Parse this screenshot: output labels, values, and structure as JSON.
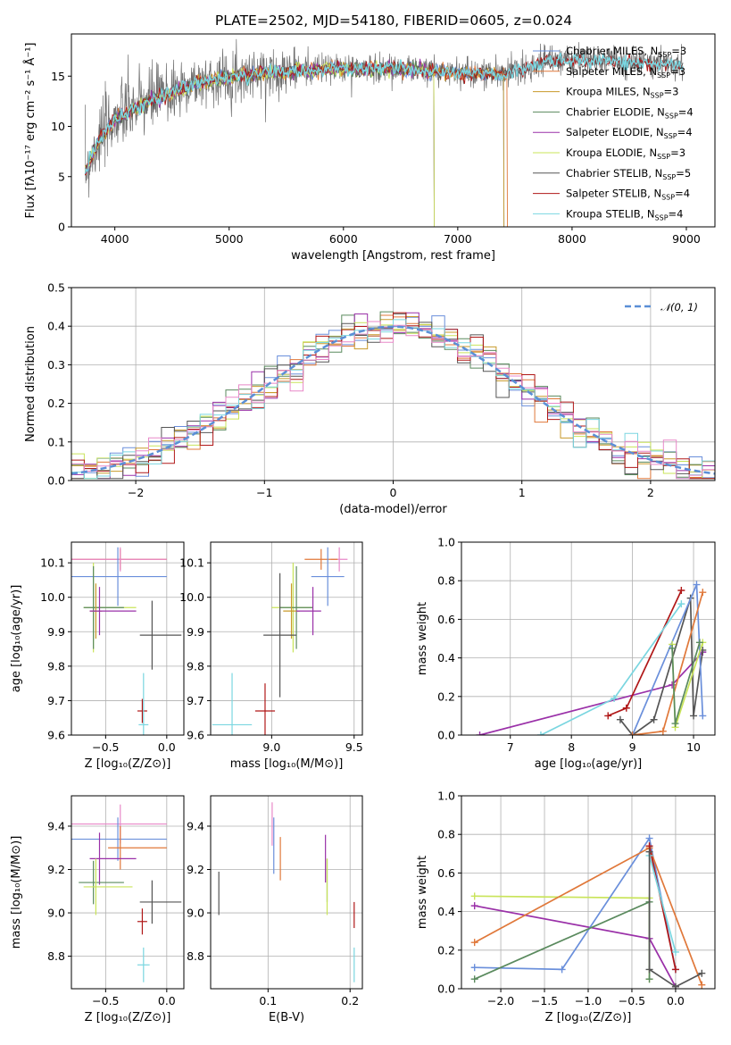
{
  "figure_title": "PLATE=2502, MJD=54180, FIBERID=0605, z=0.024",
  "colors": {
    "chabrier_miles": "#6a8fdb",
    "salpeter_miles": "#e0783a",
    "kroupa_miles": "#c89a2a",
    "chabrier_elodie": "#5a8a5e",
    "salpeter_elodie": "#9a30a8",
    "kroupa_elodie": "#c9e45a",
    "chabrier_stelib": "#555555",
    "salpeter_stelib": "#b01818",
    "kroupa_stelib": "#7ad6e0",
    "pink": "#e888c8",
    "data": "#6e6e6e",
    "normal": "#5b8fd6"
  },
  "chart_data": [
    {
      "id": "spectrum",
      "type": "line",
      "xlabel": "wavelength [Angstrom, rest frame]",
      "ylabel": "Flux [fλ10⁻¹⁷ erg cm⁻² s⁻¹ Å⁻¹]",
      "xlim": [
        3620,
        9250
      ],
      "ylim": [
        0,
        19.2
      ],
      "xticks": [
        "4000",
        "5000",
        "6000",
        "7000",
        "8000",
        "9000"
      ],
      "yticks": [
        "0",
        "5",
        "10",
        "15"
      ],
      "grid": false,
      "legend_position": "top-right",
      "continuum": [
        [
          3740,
          5.5
        ],
        [
          3850,
          8.5
        ],
        [
          4000,
          10.8
        ],
        [
          4300,
          12.6
        ],
        [
          4700,
          14.3
        ],
        [
          5000,
          15.0
        ],
        [
          5300,
          15.4
        ],
        [
          5700,
          15.7
        ],
        [
          6000,
          15.8
        ],
        [
          6500,
          15.8
        ],
        [
          7000,
          15.4
        ],
        [
          7400,
          15.2
        ],
        [
          7800,
          16.6
        ],
        [
          8300,
          16.6
        ],
        [
          8700,
          16.3
        ],
        [
          9000,
          16.1
        ]
      ],
      "data_range": [
        3740,
        8970
      ],
      "series": [
        {
          "name": "Chabrier MILES, N_SSP=3",
          "color_key": "chabrier_miles",
          "range": [
            3740,
            7400
          ]
        },
        {
          "name": "Salpeter MILES, N_SSP=3",
          "color_key": "salpeter_miles",
          "range": [
            3740,
            7430
          ]
        },
        {
          "name": "Kroupa MILES, N_SSP=3",
          "color_key": "kroupa_miles",
          "range": [
            3740,
            7400
          ]
        },
        {
          "name": "Chabrier ELODIE, N_SSP=4",
          "color_key": "chabrier_elodie",
          "range": [
            3740,
            6790
          ]
        },
        {
          "name": "Salpeter ELODIE, N_SSP=4",
          "color_key": "salpeter_elodie",
          "range": [
            3740,
            6790
          ]
        },
        {
          "name": "Kroupa ELODIE, N_SSP=3",
          "color_key": "kroupa_elodie",
          "range": [
            3740,
            6790
          ]
        },
        {
          "name": "Chabrier STELIB, N_SSP=5",
          "color_key": "chabrier_stelib",
          "range": [
            3740,
            8970
          ]
        },
        {
          "name": "Salpeter STELIB, N_SSP=4",
          "color_key": "salpeter_stelib",
          "range": [
            3740,
            8970
          ]
        },
        {
          "name": "Kroupa STELIB, N_SSP=4",
          "color_key": "kroupa_stelib",
          "range": [
            3740,
            8970
          ]
        }
      ]
    },
    {
      "id": "residuals",
      "type": "bar",
      "xlabel": "(data-model)/error",
      "ylabel": "Normed distribution",
      "xlim": [
        -2.5,
        2.5
      ],
      "ylim": [
        0,
        0.5
      ],
      "xticks": [
        "−2",
        "−1",
        "0",
        "1",
        "2"
      ],
      "yticks": [
        "0.0",
        "0.1",
        "0.2",
        "0.3",
        "0.4",
        "0.5"
      ],
      "grid": true,
      "legend": "𝒩(0, 1)",
      "legend_position": "top-right",
      "bin_width": 0.1,
      "normal": {
        "mean": 0,
        "sd": 1
      },
      "series_colors": [
        "chabrier_miles",
        "salpeter_miles",
        "kroupa_miles",
        "chabrier_elodie",
        "salpeter_elodie",
        "kroupa_elodie",
        "chabrier_stelib",
        "salpeter_stelib",
        "kroupa_stelib",
        "pink"
      ]
    },
    {
      "id": "age_vs_z",
      "type": "scatter",
      "xlabel": "Z [log₁₀(Z/Z⊙)]",
      "ylabel": "age  [log₁₀(age/yr)]",
      "xlim": [
        -0.78,
        0.14
      ],
      "ylim": [
        9.6,
        10.16
      ],
      "xticks": [
        -0.5,
        0.0
      ],
      "yticks": [
        9.6,
        9.7,
        9.8,
        9.9,
        10.0,
        10.1
      ],
      "grid": true,
      "points": [
        {
          "c": "salpeter_miles",
          "x": -0.38,
          "y": 10.11,
          "xerr": [
            0.42,
            0.38
          ],
          "yerr": 0.03
        },
        {
          "c": "pink",
          "x": -0.38,
          "y": 10.11,
          "xerr": [
            0.42,
            0.38
          ],
          "yerr": 0.035
        },
        {
          "c": "chabrier_miles",
          "x": -0.4,
          "y": 10.06,
          "xerr": [
            0.38,
            0.4
          ],
          "yerr": 0.085
        },
        {
          "c": "kroupa_elodie",
          "x": -0.6,
          "y": 9.97,
          "xerr": [
            0.08,
            0.35
          ],
          "yerr": 0.13
        },
        {
          "c": "chabrier_elodie",
          "x": -0.6,
          "y": 9.97,
          "xerr": [
            0.08,
            0.25
          ],
          "yerr": 0.12
        },
        {
          "c": "kroupa_miles",
          "x": -0.58,
          "y": 9.96,
          "xerr": [
            0.05,
            0.05
          ],
          "yerr": 0.08
        },
        {
          "c": "salpeter_elodie",
          "x": -0.55,
          "y": 9.96,
          "xerr": [
            0.08,
            0.3
          ],
          "yerr": 0.07
        },
        {
          "c": "chabrier_stelib",
          "x": -0.12,
          "y": 9.89,
          "xerr": [
            0.1,
            0.24
          ],
          "yerr": 0.1
        },
        {
          "c": "salpeter_stelib",
          "x": -0.2,
          "y": 9.67,
          "xerr": [
            0.04,
            0.04
          ],
          "yerr": 0.035
        },
        {
          "c": "kroupa_stelib",
          "x": -0.19,
          "y": 9.63,
          "xerr": [
            0.04,
            0.04
          ],
          "yerr": 0.15
        }
      ]
    },
    {
      "id": "age_vs_mass",
      "type": "scatter",
      "xlabel": "mass [log₁₀(M/M⊙)]",
      "ylabel": "",
      "xlim": [
        8.63,
        9.55
      ],
      "ylim": [
        9.6,
        10.16
      ],
      "xticks": [
        9.0,
        9.5
      ],
      "yticks": [
        9.6,
        9.7,
        9.8,
        9.9,
        10.0,
        10.1
      ],
      "grid": true,
      "points": [
        {
          "c": "pink",
          "x": 9.41,
          "y": 10.11,
          "xerr": [
            0.05,
            0.05
          ],
          "yerr": 0.035
        },
        {
          "c": "salpeter_miles",
          "x": 9.3,
          "y": 10.11,
          "xerr": [
            0.1,
            0.1
          ],
          "yerr": 0.03
        },
        {
          "c": "chabrier_miles",
          "x": 9.34,
          "y": 10.06,
          "xerr": [
            0.1,
            0.1
          ],
          "yerr": 0.085
        },
        {
          "c": "kroupa_elodie",
          "x": 9.13,
          "y": 9.97,
          "xerr": [
            0.13,
            0.12
          ],
          "yerr": 0.13
        },
        {
          "c": "chabrier_elodie",
          "x": 9.15,
          "y": 9.97,
          "xerr": [
            0.1,
            0.1
          ],
          "yerr": 0.12
        },
        {
          "c": "kroupa_miles",
          "x": 9.12,
          "y": 9.96,
          "xerr": [
            0.05,
            0.05
          ],
          "yerr": 0.08
        },
        {
          "c": "salpeter_elodie",
          "x": 9.25,
          "y": 9.96,
          "xerr": [
            0.1,
            0.05
          ],
          "yerr": 0.07
        },
        {
          "c": "chabrier_stelib",
          "x": 9.05,
          "y": 9.89,
          "xerr": [
            0.1,
            0.1
          ],
          "yerr": 0.18
        },
        {
          "c": "salpeter_stelib",
          "x": 8.96,
          "y": 9.67,
          "xerr": [
            0.06,
            0.06
          ],
          "yerr": 0.08
        },
        {
          "c": "kroupa_stelib",
          "x": 8.76,
          "y": 9.63,
          "xerr": [
            0.12,
            0.12
          ],
          "yerr": 0.15
        }
      ]
    },
    {
      "id": "mass_weight_vs_age",
      "type": "line",
      "xlabel": "age  [log₁₀(age/yr)]",
      "ylabel": "mass weight",
      "xlim": [
        6.2,
        10.35
      ],
      "ylim": [
        0,
        1.0
      ],
      "xticks": [
        7,
        8,
        9,
        10
      ],
      "yticks": [
        "0.0",
        "0.2",
        "0.4",
        "0.6",
        "0.8",
        "1.0"
      ],
      "grid": true,
      "series": [
        {
          "c": "salpeter_elodie",
          "pts": [
            [
              6.5,
              0.0
            ],
            [
              9.65,
              0.26
            ],
            [
              10.15,
              0.43
            ]
          ]
        },
        {
          "c": "salpeter_stelib",
          "pts": [
            [
              8.6,
              0.1
            ],
            [
              8.9,
              0.14
            ],
            [
              9.8,
              0.75
            ]
          ]
        },
        {
          "c": "kroupa_stelib",
          "pts": [
            [
              7.5,
              0.0
            ],
            [
              8.7,
              0.19
            ],
            [
              9.8,
              0.68
            ]
          ]
        },
        {
          "c": "chabrier_stelib",
          "pts": [
            [
              8.8,
              0.08
            ],
            [
              9.0,
              0.0
            ],
            [
              9.35,
              0.08
            ],
            [
              9.95,
              0.71
            ],
            [
              10.0,
              0.1
            ],
            [
              10.15,
              0.44
            ]
          ]
        },
        {
          "c": "chabrier_miles",
          "pts": [
            [
              9.0,
              0.0
            ],
            [
              10.05,
              0.78
            ],
            [
              10.15,
              0.1
            ]
          ]
        },
        {
          "c": "salpeter_miles",
          "pts": [
            [
              9.0,
              0.0
            ],
            [
              9.5,
              0.02
            ],
            [
              10.15,
              0.74
            ]
          ]
        },
        {
          "c": "kroupa_elodie",
          "pts": [
            [
              9.65,
              0.47
            ],
            [
              9.7,
              0.04
            ],
            [
              10.15,
              0.48
            ]
          ]
        },
        {
          "c": "chabrier_elodie",
          "pts": [
            [
              9.65,
              0.45
            ],
            [
              9.7,
              0.06
            ],
            [
              10.1,
              0.48
            ]
          ]
        }
      ]
    },
    {
      "id": "mass_vs_z",
      "type": "scatter",
      "xlabel": "Z [log₁₀(Z/Z⊙)]",
      "ylabel": "mass [log₁₀(M/M⊙)]",
      "xlim": [
        -0.78,
        0.14
      ],
      "ylim": [
        8.65,
        9.54
      ],
      "xticks": [
        -0.5,
        0.0
      ],
      "yticks": [
        8.8,
        9.0,
        9.2,
        9.4
      ],
      "grid": true,
      "points": [
        {
          "c": "pink",
          "x": -0.38,
          "y": 9.41,
          "xerr": [
            0.42,
            0.38
          ],
          "yerr": 0.09
        },
        {
          "c": "chabrier_miles",
          "x": -0.4,
          "y": 9.34,
          "xerr": [
            0.38,
            0.4
          ],
          "yerr": 0.1
        },
        {
          "c": "salpeter_miles",
          "x": -0.38,
          "y": 9.3,
          "xerr": [
            0.1,
            0.38
          ],
          "yerr": 0.1
        },
        {
          "c": "salpeter_elodie",
          "x": -0.55,
          "y": 9.25,
          "xerr": [
            0.08,
            0.3
          ],
          "yerr": 0.12
        },
        {
          "c": "chabrier_elodie",
          "x": -0.6,
          "y": 9.14,
          "xerr": [
            0.12,
            0.25
          ],
          "yerr": 0.1
        },
        {
          "c": "kroupa_elodie",
          "x": -0.58,
          "y": 9.12,
          "xerr": [
            0.1,
            0.3
          ],
          "yerr": 0.13
        },
        {
          "c": "chabrier_stelib",
          "x": -0.12,
          "y": 9.05,
          "xerr": [
            0.1,
            0.24
          ],
          "yerr": 0.1
        },
        {
          "c": "salpeter_stelib",
          "x": -0.2,
          "y": 8.96,
          "xerr": [
            0.04,
            0.04
          ],
          "yerr": 0.06
        },
        {
          "c": "kroupa_stelib",
          "x": -0.19,
          "y": 8.76,
          "xerr": [
            0.05,
            0.05
          ],
          "yerr": 0.08
        }
      ]
    },
    {
      "id": "mass_vs_ebv",
      "type": "scatter",
      "xlabel": "E(B-V)",
      "ylabel": "",
      "xlim": [
        0.03,
        0.215
      ],
      "ylim": [
        8.65,
        9.54
      ],
      "xticks": [
        "0.1",
        "0.2"
      ],
      "yticks": [
        8.8,
        9.0,
        9.2,
        9.4
      ],
      "grid": true,
      "points": [
        {
          "c": "chabrier_stelib",
          "x": 0.04,
          "y": 9.09,
          "xerr": [
            0,
            0
          ],
          "yerr": 0.1
        },
        {
          "c": "pink",
          "x": 0.105,
          "y": 9.41,
          "xerr": [
            0,
            0
          ],
          "yerr": 0.1
        },
        {
          "c": "chabrier_miles",
          "x": 0.107,
          "y": 9.31,
          "xerr": [
            0,
            0
          ],
          "yerr": 0.13
        },
        {
          "c": "salpeter_miles",
          "x": 0.115,
          "y": 9.25,
          "xerr": [
            0,
            0
          ],
          "yerr": 0.1
        },
        {
          "c": "salpeter_elodie",
          "x": 0.17,
          "y": 9.25,
          "xerr": [
            0,
            0
          ],
          "yerr": 0.11
        },
        {
          "c": "chabrier_elodie",
          "x": 0.172,
          "y": 9.15,
          "xerr": [
            0,
            0
          ],
          "yerr": 0.1
        },
        {
          "c": "kroupa_elodie",
          "x": 0.172,
          "y": 9.12,
          "xerr": [
            0,
            0
          ],
          "yerr": 0.13
        },
        {
          "c": "salpeter_stelib",
          "x": 0.205,
          "y": 8.99,
          "xerr": [
            0,
            0
          ],
          "yerr": 0.06
        },
        {
          "c": "kroupa_stelib",
          "x": 0.205,
          "y": 8.76,
          "xerr": [
            0,
            0
          ],
          "yerr": 0.08
        }
      ]
    },
    {
      "id": "mass_weight_vs_z",
      "type": "line",
      "xlabel": "Z [log₁₀(Z/Z⊙)]",
      "ylabel": "mass weight",
      "xlim": [
        -2.45,
        0.45
      ],
      "ylim": [
        0,
        1.0
      ],
      "xticks": [
        "−2.0",
        "−1.5",
        "−1.0",
        "−0.5",
        "0.0"
      ],
      "yticks": [
        "0.0",
        "0.2",
        "0.4",
        "0.6",
        "0.8",
        "1.0"
      ],
      "grid": true,
      "series": [
        {
          "c": "kroupa_elodie",
          "pts": [
            [
              -2.3,
              0.48
            ],
            [
              -0.3,
              0.47
            ],
            [
              -0.3,
              0.05
            ]
          ]
        },
        {
          "c": "salpeter_elodie",
          "pts": [
            [
              -2.3,
              0.43
            ],
            [
              -0.3,
              0.26
            ],
            [
              0.0,
              0.01
            ]
          ]
        },
        {
          "c": "chabrier_miles",
          "pts": [
            [
              -2.3,
              0.11
            ],
            [
              -1.3,
              0.1
            ],
            [
              -0.3,
              0.78
            ],
            [
              0.0,
              0.1
            ]
          ]
        },
        {
          "c": "chabrier_elodie",
          "pts": [
            [
              -2.3,
              0.05
            ],
            [
              -0.3,
              0.45
            ],
            [
              -0.3,
              0.05
            ]
          ]
        },
        {
          "c": "salpeter_miles",
          "pts": [
            [
              -2.3,
              0.24
            ],
            [
              -0.3,
              0.73
            ],
            [
              0.3,
              0.02
            ]
          ]
        },
        {
          "c": "salpeter_stelib",
          "pts": [
            [
              -0.3,
              0.74
            ],
            [
              0.0,
              0.1
            ]
          ]
        },
        {
          "c": "kroupa_stelib",
          "pts": [
            [
              -0.3,
              0.69
            ],
            [
              0.0,
              0.19
            ]
          ]
        },
        {
          "c": "chabrier_stelib",
          "pts": [
            [
              -0.3,
              0.71
            ],
            [
              -0.3,
              0.1
            ],
            [
              0.0,
              0.01
            ],
            [
              0.3,
              0.08
            ]
          ]
        }
      ]
    }
  ]
}
